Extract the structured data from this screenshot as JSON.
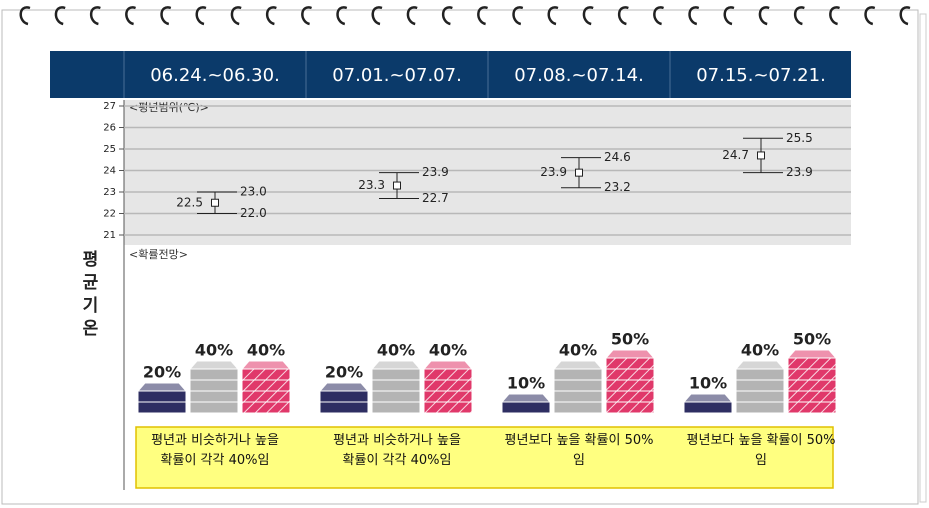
{
  "side_label": "평균기온",
  "periods": [
    "06.24.~06.30.",
    "07.01.~07.07.",
    "07.08.~07.14.",
    "07.15.~07.21."
  ],
  "range_chart": {
    "type": "errorbar",
    "title": "<평년범위(℃)>",
    "ylim": [
      21,
      27
    ],
    "yticks": [
      21,
      22,
      23,
      24,
      25,
      26,
      27
    ],
    "grid": true,
    "mid": {
      "values": [
        22.5,
        23.3,
        23.9,
        24.7
      ]
    },
    "high": {
      "values": [
        23,
        23.9,
        24.6,
        25.5
      ],
      "value_labels": [
        "23.0",
        "23.9",
        "24.6",
        "25.5"
      ]
    },
    "low": {
      "values": [
        22,
        22.7,
        23.2,
        23.9
      ],
      "value_labels": [
        "22.0",
        "22.7",
        "23.2",
        "23.9"
      ]
    }
  },
  "prob_chart": {
    "type": "stack",
    "title": "<확률전망>",
    "colors": [
      "#2e2e62",
      "#b4b4b4",
      "#e0386a"
    ],
    "values": [
      [
        20,
        40,
        40
      ],
      [
        20,
        40,
        40
      ],
      [
        10,
        40,
        50
      ],
      [
        10,
        40,
        50
      ]
    ],
    "value_labels": [
      [
        "20%",
        "40%",
        "40%"
      ],
      [
        "20%",
        "40%",
        "40%"
      ],
      [
        "10%",
        "40%",
        "50%"
      ],
      [
        "10%",
        "40%",
        "50%"
      ]
    ]
  },
  "summaries": [
    "평년과 비슷하거나 높을 확률이 각각 40%임",
    "평년과 비슷하거나 높을 확률이 각각 40%임",
    "평년보다 높을 확률이 50%임",
    "평년보다 높을 확률이 50%임"
  ]
}
